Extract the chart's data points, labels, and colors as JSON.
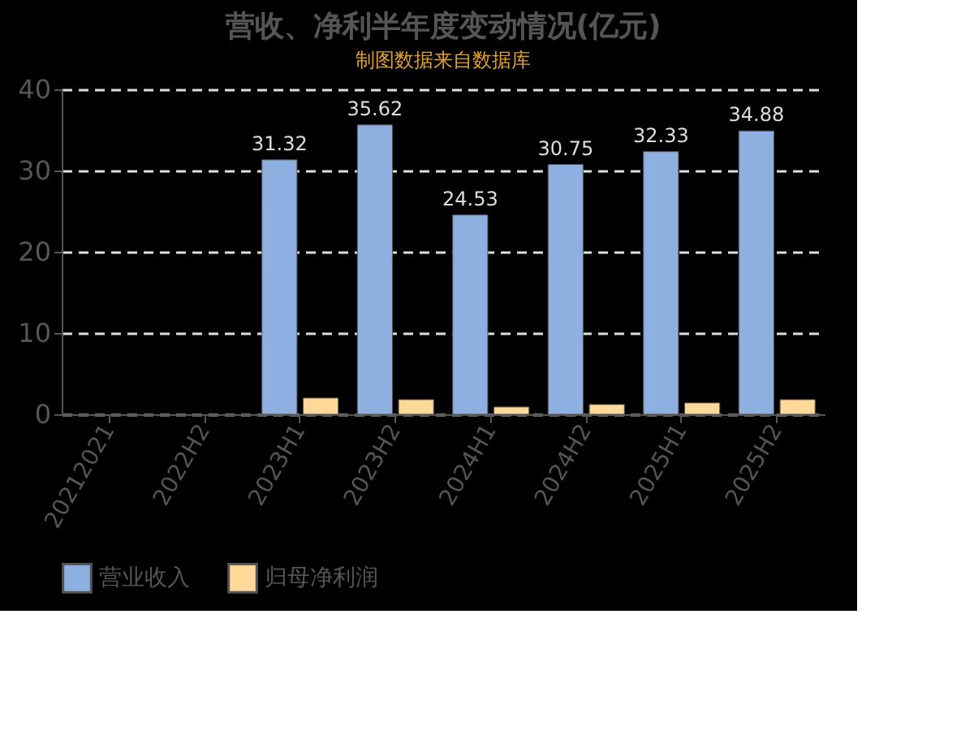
{
  "chart_data": {
    "type": "bar",
    "title": "营收、净利半年度变动情况(亿元)",
    "categories": [
      "20212021",
      "2022H2",
      "2023H1",
      "2023H2",
      "2024H1",
      "2024H2",
      "2025H1",
      "2025H2"
    ],
    "series": [
      {
        "name": "营业收入",
        "color": "#8eb0e0",
        "values": [
          null,
          null,
          31.32,
          35.62,
          24.53,
          30.75,
          32.33,
          34.88
        ],
        "value_labels": [
          null,
          null,
          "31.32",
          "35.62",
          "24.53",
          "30.75",
          "32.33",
          "34.88"
        ]
      },
      {
        "name": "归母净利润",
        "color": "#ffd99a",
        "values": [
          null,
          null,
          2.0,
          1.8,
          0.9,
          1.2,
          1.4,
          1.8
        ]
      }
    ],
    "ylim": [
      0,
      40
    ],
    "yticks": [
      0,
      10,
      20,
      30,
      40
    ],
    "grid": "y",
    "legend": "bottom",
    "annotations": [
      "制图数据来自数据库"
    ]
  }
}
